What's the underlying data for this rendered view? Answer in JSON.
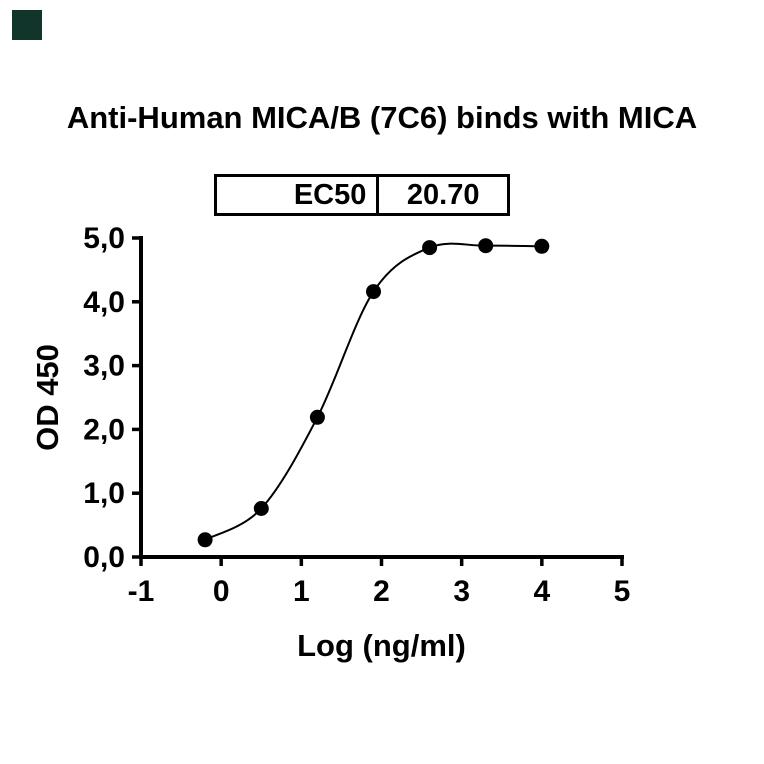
{
  "title": "Anti-Human MICA/B (7C6) binds with MICA",
  "ec50_table": {
    "label": "EC50",
    "value": "20.70"
  },
  "corner_mark": {
    "color": "#12352b"
  },
  "colors": {
    "axis": "#000000",
    "marker": "#000000",
    "curve": "#000000",
    "background": "#ffffff"
  },
  "chart_data": {
    "type": "scatter",
    "title": "Anti-Human MICA/B (7C6) binds with MICA",
    "xlabel": "Log (ng/ml)",
    "ylabel": "OD 450",
    "xlim": [
      -1,
      5
    ],
    "ylim": [
      0,
      5
    ],
    "x_ticks": [
      -1,
      0,
      1,
      2,
      3,
      4,
      5
    ],
    "x_tick_labels": [
      "-1",
      "0",
      "1",
      "2",
      "3",
      "4",
      "5"
    ],
    "y_ticks": [
      0,
      1,
      2,
      3,
      4,
      5
    ],
    "y_tick_labels": [
      "0,0",
      "1,0",
      "2,0",
      "3,0",
      "4,0",
      "5,0"
    ],
    "grid": false,
    "legend": "none",
    "ec50": 20.7,
    "series": [
      {
        "name": "Anti-Human MICA/B (7C6)",
        "x": [
          -0.2,
          0.5,
          1.2,
          1.9,
          2.6,
          3.3,
          4.0
        ],
        "y": [
          0.27,
          0.76,
          2.19,
          4.16,
          4.85,
          4.88,
          4.87
        ],
        "marker": "circle",
        "fit": "sigmoidal-dose-response"
      }
    ]
  }
}
